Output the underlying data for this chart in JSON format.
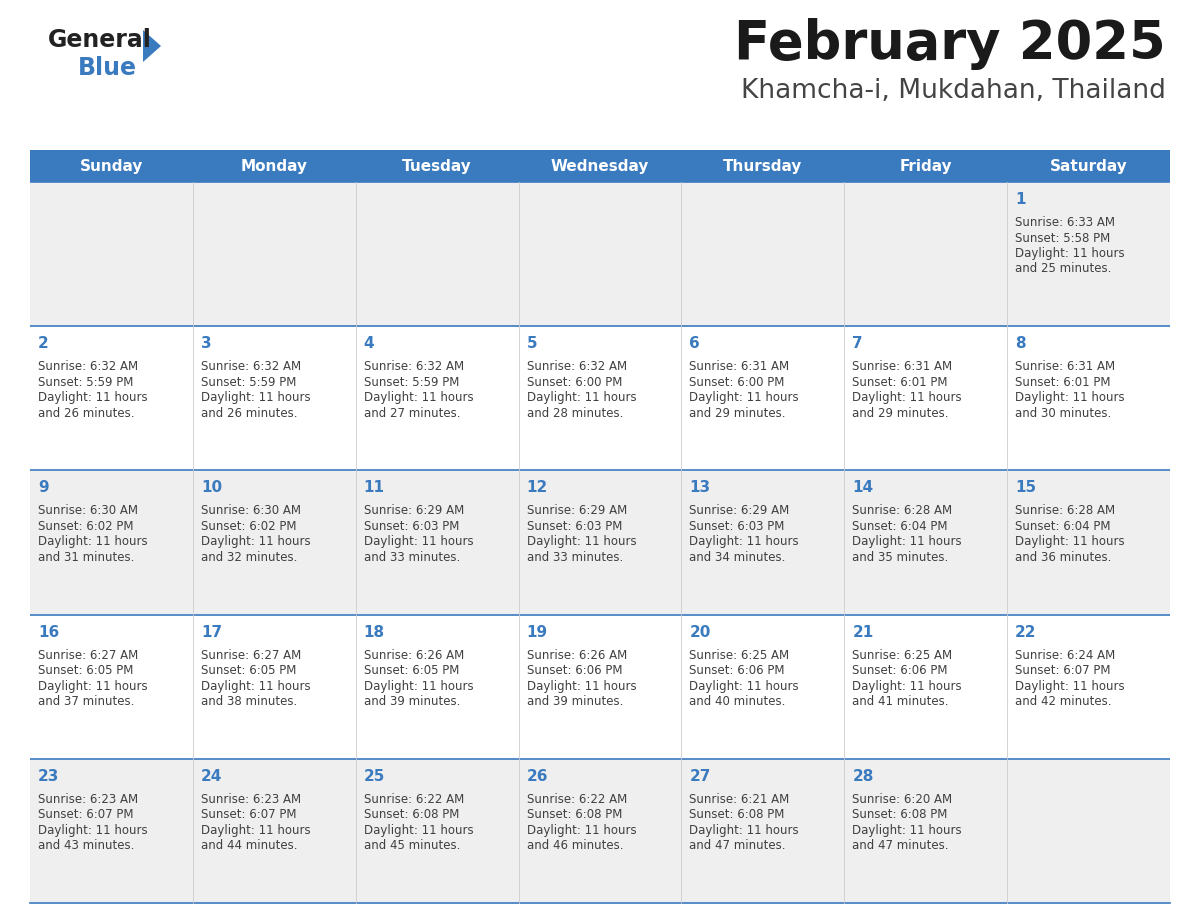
{
  "title": "February 2025",
  "subtitle": "Khamcha-i, Mukdahan, Thailand",
  "days_of_week": [
    "Sunday",
    "Monday",
    "Tuesday",
    "Wednesday",
    "Thursday",
    "Friday",
    "Saturday"
  ],
  "header_bg": "#3a7abf",
  "header_text": "#ffffff",
  "cell_bg_odd": "#efefef",
  "cell_bg_even": "#ffffff",
  "border_color": "#3a7abf",
  "day_num_color": "#3a7abf",
  "text_color": "#404040",
  "logo_general_color": "#222222",
  "logo_blue_color": "#3a7abf",
  "logo_triangle_color": "#3a7abf",
  "title_color": "#1a1a1a",
  "subtitle_color": "#444444",
  "calendar_data": [
    [
      {
        "day": null,
        "sunrise": null,
        "sunset": null,
        "daylight": null
      },
      {
        "day": null,
        "sunrise": null,
        "sunset": null,
        "daylight": null
      },
      {
        "day": null,
        "sunrise": null,
        "sunset": null,
        "daylight": null
      },
      {
        "day": null,
        "sunrise": null,
        "sunset": null,
        "daylight": null
      },
      {
        "day": null,
        "sunrise": null,
        "sunset": null,
        "daylight": null
      },
      {
        "day": null,
        "sunrise": null,
        "sunset": null,
        "daylight": null
      },
      {
        "day": 1,
        "sunrise": "6:33 AM",
        "sunset": "5:58 PM",
        "daylight": "11 hours and 25 minutes."
      }
    ],
    [
      {
        "day": 2,
        "sunrise": "6:32 AM",
        "sunset": "5:59 PM",
        "daylight": "11 hours and 26 minutes."
      },
      {
        "day": 3,
        "sunrise": "6:32 AM",
        "sunset": "5:59 PM",
        "daylight": "11 hours and 26 minutes."
      },
      {
        "day": 4,
        "sunrise": "6:32 AM",
        "sunset": "5:59 PM",
        "daylight": "11 hours and 27 minutes."
      },
      {
        "day": 5,
        "sunrise": "6:32 AM",
        "sunset": "6:00 PM",
        "daylight": "11 hours and 28 minutes."
      },
      {
        "day": 6,
        "sunrise": "6:31 AM",
        "sunset": "6:00 PM",
        "daylight": "11 hours and 29 minutes."
      },
      {
        "day": 7,
        "sunrise": "6:31 AM",
        "sunset": "6:01 PM",
        "daylight": "11 hours and 29 minutes."
      },
      {
        "day": 8,
        "sunrise": "6:31 AM",
        "sunset": "6:01 PM",
        "daylight": "11 hours and 30 minutes."
      }
    ],
    [
      {
        "day": 9,
        "sunrise": "6:30 AM",
        "sunset": "6:02 PM",
        "daylight": "11 hours and 31 minutes."
      },
      {
        "day": 10,
        "sunrise": "6:30 AM",
        "sunset": "6:02 PM",
        "daylight": "11 hours and 32 minutes."
      },
      {
        "day": 11,
        "sunrise": "6:29 AM",
        "sunset": "6:03 PM",
        "daylight": "11 hours and 33 minutes."
      },
      {
        "day": 12,
        "sunrise": "6:29 AM",
        "sunset": "6:03 PM",
        "daylight": "11 hours and 33 minutes."
      },
      {
        "day": 13,
        "sunrise": "6:29 AM",
        "sunset": "6:03 PM",
        "daylight": "11 hours and 34 minutes."
      },
      {
        "day": 14,
        "sunrise": "6:28 AM",
        "sunset": "6:04 PM",
        "daylight": "11 hours and 35 minutes."
      },
      {
        "day": 15,
        "sunrise": "6:28 AM",
        "sunset": "6:04 PM",
        "daylight": "11 hours and 36 minutes."
      }
    ],
    [
      {
        "day": 16,
        "sunrise": "6:27 AM",
        "sunset": "6:05 PM",
        "daylight": "11 hours and 37 minutes."
      },
      {
        "day": 17,
        "sunrise": "6:27 AM",
        "sunset": "6:05 PM",
        "daylight": "11 hours and 38 minutes."
      },
      {
        "day": 18,
        "sunrise": "6:26 AM",
        "sunset": "6:05 PM",
        "daylight": "11 hours and 39 minutes."
      },
      {
        "day": 19,
        "sunrise": "6:26 AM",
        "sunset": "6:06 PM",
        "daylight": "11 hours and 39 minutes."
      },
      {
        "day": 20,
        "sunrise": "6:25 AM",
        "sunset": "6:06 PM",
        "daylight": "11 hours and 40 minutes."
      },
      {
        "day": 21,
        "sunrise": "6:25 AM",
        "sunset": "6:06 PM",
        "daylight": "11 hours and 41 minutes."
      },
      {
        "day": 22,
        "sunrise": "6:24 AM",
        "sunset": "6:07 PM",
        "daylight": "11 hours and 42 minutes."
      }
    ],
    [
      {
        "day": 23,
        "sunrise": "6:23 AM",
        "sunset": "6:07 PM",
        "daylight": "11 hours and 43 minutes."
      },
      {
        "day": 24,
        "sunrise": "6:23 AM",
        "sunset": "6:07 PM",
        "daylight": "11 hours and 44 minutes."
      },
      {
        "day": 25,
        "sunrise": "6:22 AM",
        "sunset": "6:08 PM",
        "daylight": "11 hours and 45 minutes."
      },
      {
        "day": 26,
        "sunrise": "6:22 AM",
        "sunset": "6:08 PM",
        "daylight": "11 hours and 46 minutes."
      },
      {
        "day": 27,
        "sunrise": "6:21 AM",
        "sunset": "6:08 PM",
        "daylight": "11 hours and 47 minutes."
      },
      {
        "day": 28,
        "sunrise": "6:20 AM",
        "sunset": "6:08 PM",
        "daylight": "11 hours and 47 minutes."
      },
      {
        "day": null,
        "sunrise": null,
        "sunset": null,
        "daylight": null
      }
    ]
  ]
}
